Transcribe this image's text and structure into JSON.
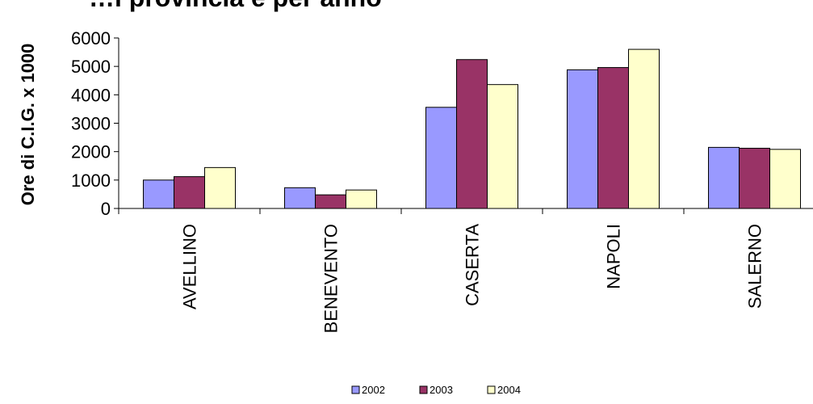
{
  "chart_data": {
    "type": "bar",
    "title": "…i provincia e per anno",
    "ylabel": "Ore di C.I.G. x 1000",
    "xlabel": "",
    "categories": [
      "AVELLINO",
      "BENEVENTO",
      "CASERTA",
      "NAPOLI",
      "SALERNO"
    ],
    "series": [
      {
        "name": "2002",
        "values": [
          1000,
          730,
          3560,
          4880,
          2150
        ],
        "color": "#9999FF"
      },
      {
        "name": "2003",
        "values": [
          1120,
          480,
          5240,
          4960,
          2120
        ],
        "color": "#993366"
      },
      {
        "name": "2004",
        "values": [
          1440,
          650,
          4360,
          5600,
          2080
        ],
        "color": "#FFFFCC"
      }
    ],
    "ylim": [
      0,
      6000
    ],
    "yticks": [
      "0",
      "1000",
      "2000",
      "3000",
      "4000",
      "5000",
      "6000"
    ],
    "grid": false,
    "legend_position": "bottom"
  }
}
